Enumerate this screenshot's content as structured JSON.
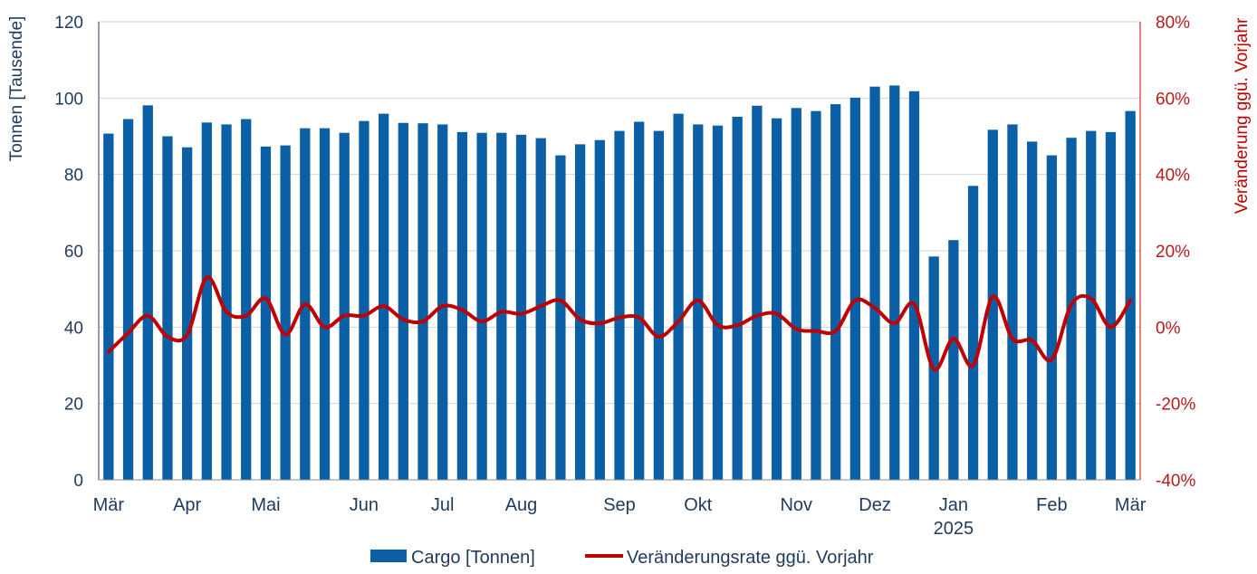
{
  "chart_data": {
    "type": "bar+line",
    "title": "",
    "x_labels": [
      "Mär",
      "Apr",
      "Mai",
      "Jun",
      "Jul",
      "Aug",
      "Sep",
      "Okt",
      "Nov",
      "Dez",
      "Jan",
      "Feb",
      "Mär"
    ],
    "x_sublabel": "2025",
    "ylabel_left": "Tonnen [Tausende]",
    "ylabel_right": "Veränderung ggü. Vorjahr",
    "ylim_left": [
      0,
      120
    ],
    "yticks_left": [
      "0",
      "20",
      "40",
      "60",
      "80",
      "100",
      "120"
    ],
    "ylim_right": [
      -40,
      80
    ],
    "yticks_right": [
      "-40%",
      "-20%",
      "0%",
      "20%",
      "40%",
      "60%",
      "80%"
    ],
    "series": [
      {
        "name": "Cargo [Tonnen]",
        "type": "bar",
        "color": "#0b5fa5",
        "values": [
          90.7,
          94.5,
          98.1,
          90.0,
          87.1,
          93.6,
          93.1,
          94.5,
          87.3,
          87.6,
          92.1,
          92.1,
          90.9,
          94.0,
          95.9,
          93.5,
          93.4,
          93.1,
          91.1,
          90.9,
          90.9,
          90.4,
          89.5,
          85.0,
          87.9,
          89.0,
          91.4,
          93.8,
          91.4,
          95.9,
          93.1,
          92.8,
          95.1,
          98.0,
          94.7,
          97.4,
          96.6,
          98.4,
          100.1,
          103.0,
          103.3,
          101.8,
          58.5,
          62.8,
          77.0,
          91.7,
          93.1,
          88.6,
          85.0,
          89.6,
          91.4,
          91.1,
          96.6
        ]
      },
      {
        "name": "Veränderungsrate ggü. Vorjahr",
        "type": "line",
        "color": "#c00000",
        "values": [
          -6.5,
          -1.5,
          3.0,
          -2.5,
          -2.0,
          13.0,
          4.0,
          3.0,
          7.5,
          -2.0,
          6.0,
          0.0,
          3.0,
          3.0,
          5.5,
          2.0,
          1.5,
          5.5,
          4.5,
          1.5,
          4.0,
          3.5,
          5.5,
          7.0,
          2.0,
          1.0,
          2.5,
          2.5,
          -2.5,
          1.5,
          7.0,
          0.5,
          0.5,
          3.0,
          3.5,
          -0.5,
          -1.0,
          -1.0,
          7.0,
          5.0,
          1.0,
          6.0,
          -11.0,
          -3.0,
          -10.0,
          8.0,
          -3.0,
          -3.5,
          -8.5,
          6.0,
          7.5,
          0.0,
          7.0
        ]
      }
    ],
    "legend_position": "bottom-center",
    "grid": "horizontal"
  }
}
